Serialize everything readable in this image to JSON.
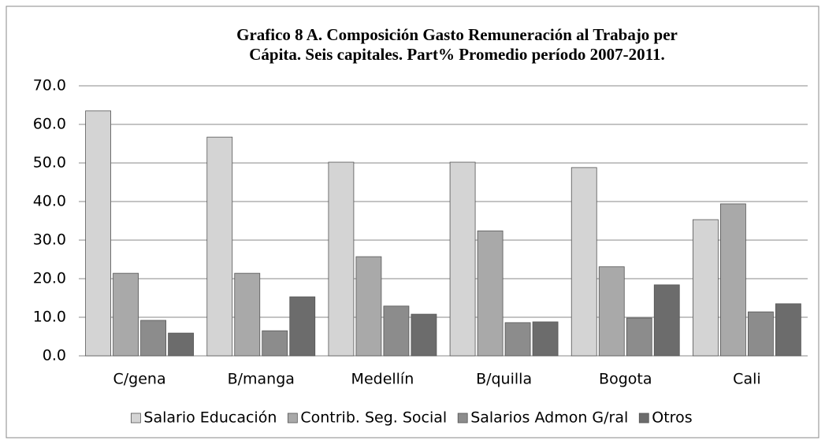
{
  "chart_data": {
    "type": "bar",
    "title": "Grafico 8 A. Composición Gasto Remuneración al Trabajo per",
    "subtitle": "Cápita. Seis capitales. Part%  Promedio período 2007-2011.",
    "categories": [
      "C/gena",
      "B/manga",
      "Medellín",
      "B/quilla",
      "Bogota",
      "Cali"
    ],
    "series": [
      {
        "name": "Salario Educación",
        "color": "#d4d4d4",
        "values": [
          63.5,
          56.7,
          50.2,
          50.2,
          48.8,
          35.3
        ]
      },
      {
        "name": "Contrib. Seg. Social",
        "color": "#a9a9a9",
        "values": [
          21.4,
          21.4,
          25.7,
          32.4,
          23.1,
          39.4
        ]
      },
      {
        "name": "Salarios Admon G/ral",
        "color": "#8c8c8c",
        "values": [
          9.2,
          6.5,
          12.9,
          8.6,
          9.8,
          11.4
        ]
      },
      {
        "name": "Otros",
        "color": "#6c6c6c",
        "values": [
          5.9,
          15.3,
          10.8,
          8.8,
          18.4,
          13.5
        ]
      }
    ],
    "ylim": [
      0,
      70
    ],
    "yticks": [
      {
        "value": 0,
        "label": "0.0"
      },
      {
        "value": 10,
        "label": "10.0"
      },
      {
        "value": 20,
        "label": "20.0"
      },
      {
        "value": 30,
        "label": "30.0"
      },
      {
        "value": 40,
        "label": "40.0"
      },
      {
        "value": 50,
        "label": "50.0"
      },
      {
        "value": 60,
        "label": "60.0"
      },
      {
        "value": 70,
        "label": "70.0"
      }
    ],
    "grid": true,
    "legend": "bottom"
  }
}
